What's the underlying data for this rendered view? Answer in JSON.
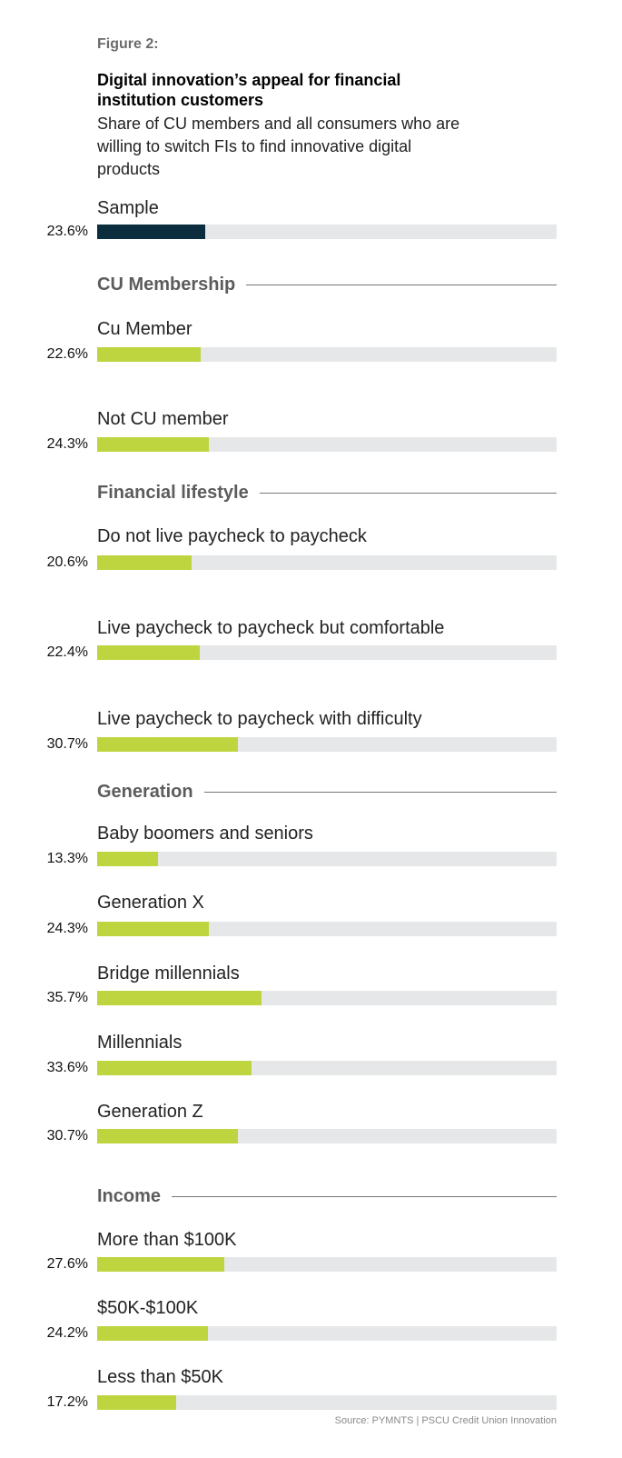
{
  "figure_label": "Figure 2:",
  "chart_data": {
    "type": "bar",
    "orientation": "horizontal",
    "title": "Digital innovation’s appeal for financial institution customers",
    "subtitle": "Share of CU members and all consumers who are willing to switch FIs to find innovative digital products",
    "xlim": [
      0,
      100
    ],
    "unit": "%",
    "colors": {
      "sample": "#0b2d3e",
      "segment": "#bfd540",
      "track": "#e6e7e8"
    },
    "groups": [
      {
        "name": "",
        "items": [
          {
            "label": "Sample",
            "value": 23.6,
            "display": "23.6%"
          }
        ]
      },
      {
        "name": "CU Membership",
        "items": [
          {
            "label": "Cu Member",
            "value": 22.6,
            "display": "22.6%"
          },
          {
            "label": "Not CU member",
            "value": 24.3,
            "display": "24.3%"
          }
        ]
      },
      {
        "name": "Financial lifestyle",
        "items": [
          {
            "label": "Do not live paycheck to paycheck",
            "value": 20.6,
            "display": "20.6%"
          },
          {
            "label": "Live paycheck to paycheck but comfortable",
            "value": 22.4,
            "display": "22.4%"
          },
          {
            "label": "Live paycheck to paycheck with difficulty",
            "value": 30.7,
            "display": "30.7%"
          }
        ]
      },
      {
        "name": "Generation",
        "items": [
          {
            "label": "Baby boomers and seniors",
            "value": 13.3,
            "display": "13.3%"
          },
          {
            "label": "Generation X",
            "value": 24.3,
            "display": "24.3%"
          },
          {
            "label": "Bridge millennials",
            "value": 35.7,
            "display": "35.7%"
          },
          {
            "label": "Millennials",
            "value": 33.6,
            "display": "33.6%"
          },
          {
            "label": "Generation Z",
            "value": 30.7,
            "display": "30.7%"
          }
        ]
      },
      {
        "name": "Income",
        "items": [
          {
            "label": "More than $100K",
            "value": 27.6,
            "display": "27.6%"
          },
          {
            "label": "$50K-$100K",
            "value": 24.2,
            "display": "24.2%"
          },
          {
            "label": "Less than $50K",
            "value": 17.2,
            "display": "17.2%"
          }
        ]
      }
    ]
  },
  "source": "Source: PYMNTS | PSCU Credit Union Innovation"
}
